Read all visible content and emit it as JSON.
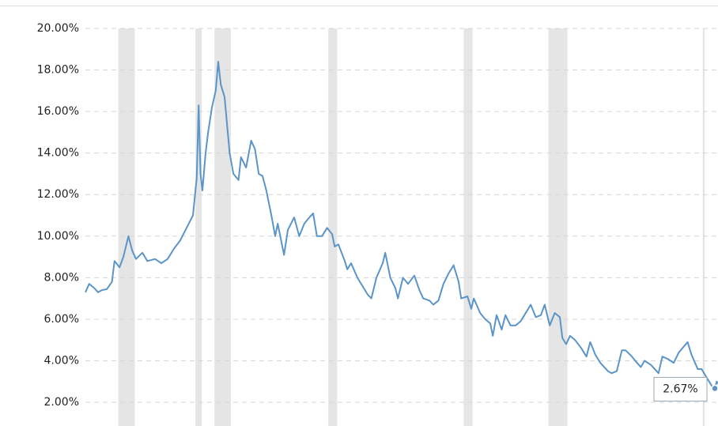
{
  "chart_data": {
    "type": "line",
    "color": "#5b95c8",
    "xlim": [
      1971.3,
      2021.3
    ],
    "ylim": [
      0,
      20
    ],
    "yticks": [
      {
        "value": 2,
        "label": "2.00%"
      },
      {
        "value": 4,
        "label": "4.00%"
      },
      {
        "value": 6,
        "label": "6.00%"
      },
      {
        "value": 8,
        "label": "8.00%"
      },
      {
        "value": 10,
        "label": "10.00%"
      },
      {
        "value": 12,
        "label": "12.00%"
      },
      {
        "value": 14,
        "label": "14.00%"
      },
      {
        "value": 16,
        "label": "16.00%"
      },
      {
        "value": 18,
        "label": "18.00%"
      },
      {
        "value": 20,
        "label": "20.00%"
      }
    ],
    "grid": true,
    "shaded_regions": [
      [
        1973.9,
        1975.2
      ],
      [
        1980.0,
        1980.5
      ],
      [
        1981.5,
        1982.8
      ],
      [
        1990.5,
        1991.2
      ],
      [
        2001.2,
        2001.9
      ],
      [
        2007.9,
        2009.4
      ],
      [
        2020.1,
        2020.25
      ]
    ],
    "x": [
      1971.3,
      1971.6,
      1972.0,
      1972.3,
      1972.6,
      1973.0,
      1973.4,
      1973.6,
      1974.0,
      1974.3,
      1974.7,
      1975.0,
      1975.3,
      1975.8,
      1976.2,
      1976.8,
      1977.3,
      1977.8,
      1978.3,
      1978.8,
      1979.3,
      1979.8,
      1980.1,
      1980.25,
      1980.4,
      1980.55,
      1980.8,
      1981.0,
      1981.3,
      1981.6,
      1981.8,
      1982.0,
      1982.3,
      1982.7,
      1983.0,
      1983.4,
      1983.6,
      1984.0,
      1984.4,
      1984.7,
      1985.0,
      1985.3,
      1985.6,
      1986.0,
      1986.3,
      1986.5,
      1986.8,
      1987.0,
      1987.3,
      1987.8,
      1988.2,
      1988.6,
      1989.0,
      1989.3,
      1989.6,
      1990.0,
      1990.4,
      1990.8,
      1991.0,
      1991.3,
      1991.8,
      1992.0,
      1992.3,
      1992.8,
      1993.2,
      1993.6,
      1993.9,
      1994.3,
      1994.8,
      1995.0,
      1995.4,
      1995.8,
      1996.0,
      1996.4,
      1996.8,
      1997.3,
      1997.7,
      1998.0,
      1998.5,
      1998.8,
      1999.2,
      1999.6,
      2000.0,
      2000.4,
      2000.8,
      2001.0,
      2001.5,
      2001.8,
      2002.0,
      2002.5,
      2002.9,
      2003.3,
      2003.5,
      2003.8,
      2004.2,
      2004.5,
      2004.9,
      2005.3,
      2005.7,
      2006.0,
      2006.5,
      2006.9,
      2007.3,
      2007.6,
      2008.0,
      2008.4,
      2008.8,
      2009.0,
      2009.3,
      2009.6,
      2010.0,
      2010.5,
      2010.9,
      2011.2,
      2011.6,
      2012.0,
      2012.6,
      2012.9,
      2013.3,
      2013.7,
      2014.0,
      2014.5,
      2014.9,
      2015.2,
      2015.5,
      2016.0,
      2016.6,
      2016.9,
      2017.3,
      2017.8,
      2018.2,
      2018.9,
      2019.2,
      2019.7,
      2020.0,
      2020.3,
      2020.6,
      2020.9,
      2021.05,
      2021.2,
      2021.3
    ],
    "values": [
      7.3,
      7.7,
      7.5,
      7.3,
      7.4,
      7.45,
      7.8,
      8.8,
      8.5,
      9.0,
      10.0,
      9.3,
      8.9,
      9.2,
      8.8,
      8.9,
      8.7,
      8.9,
      9.4,
      9.8,
      10.4,
      11.0,
      12.8,
      16.3,
      13.0,
      12.2,
      14.0,
      15.0,
      16.2,
      17.0,
      18.4,
      17.3,
      16.7,
      14.0,
      13.0,
      12.7,
      13.8,
      13.3,
      14.6,
      14.2,
      13.0,
      12.9,
      12.2,
      11.0,
      10.0,
      10.6,
      9.7,
      9.1,
      10.3,
      10.9,
      10.0,
      10.6,
      10.9,
      11.1,
      10.0,
      10.0,
      10.4,
      10.1,
      9.5,
      9.6,
      8.8,
      8.4,
      8.7,
      8.0,
      7.6,
      7.2,
      7.0,
      8.0,
      8.7,
      9.2,
      8.0,
      7.5,
      7.0,
      8.0,
      7.7,
      8.1,
      7.4,
      7.0,
      6.9,
      6.7,
      6.9,
      7.7,
      8.2,
      8.6,
      7.8,
      7.0,
      7.1,
      6.5,
      7.0,
      6.3,
      6.0,
      5.8,
      5.2,
      6.2,
      5.5,
      6.2,
      5.7,
      5.7,
      5.9,
      6.2,
      6.7,
      6.1,
      6.2,
      6.7,
      5.7,
      6.3,
      6.1,
      5.1,
      4.8,
      5.2,
      5.0,
      4.6,
      4.2,
      4.9,
      4.3,
      3.9,
      3.5,
      3.4,
      3.5,
      4.5,
      4.5,
      4.2,
      3.9,
      3.7,
      4.0,
      3.8,
      3.4,
      4.2,
      4.1,
      3.9,
      4.4,
      4.9,
      4.3,
      3.6,
      3.6,
      3.3,
      3.0,
      2.7,
      2.67,
      3.0,
      2.9
    ],
    "annotations": [
      {
        "x": 2021.05,
        "value": 2.67,
        "label": "2.67%"
      }
    ]
  }
}
